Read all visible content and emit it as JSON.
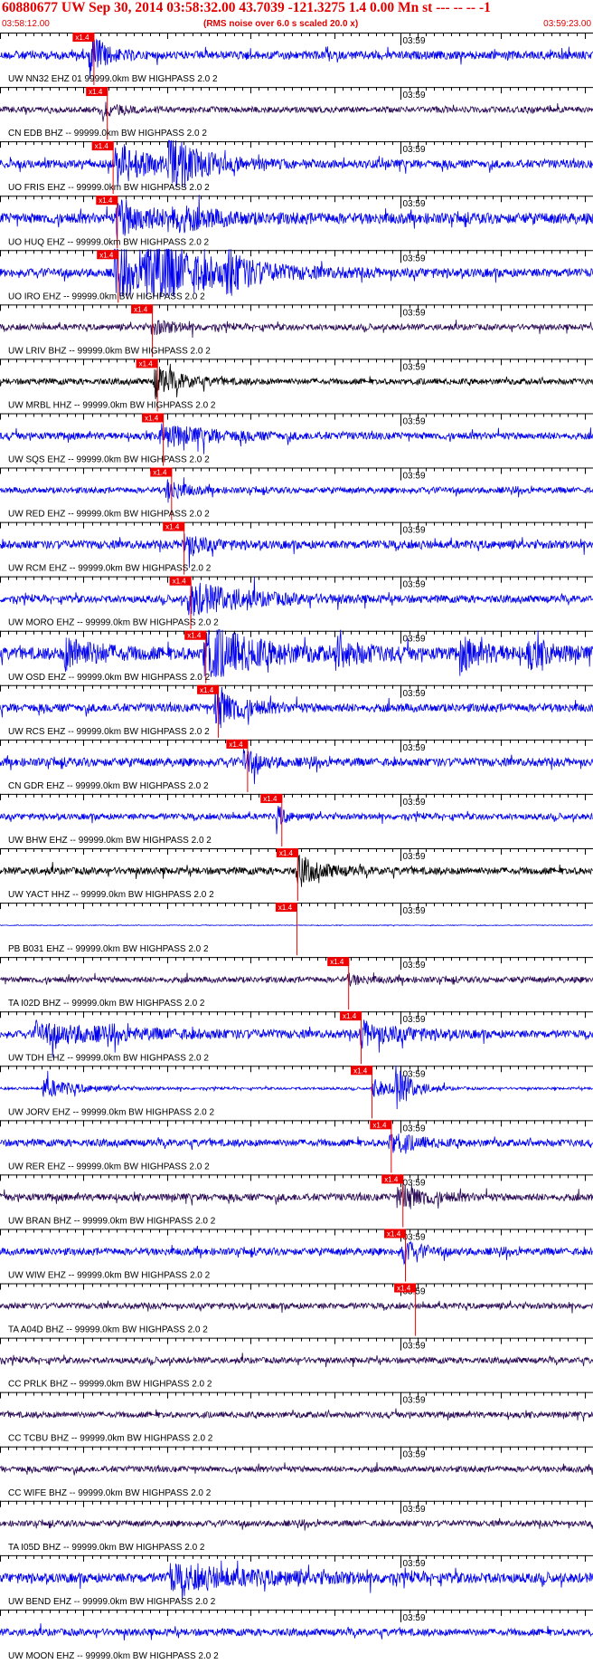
{
  "header": {
    "title": "60880677 UW Sep 30, 2014 03:58:32.00   43.7039 -121.3275  1.4 0.00 Mn st --- -- --   -1",
    "start_time": "03:58:12.00",
    "scale_note": "(RMS noise over 6.0 s scaled 20.0 x)",
    "end_time": "03:59:23.00"
  },
  "colors": {
    "blue": "#0000ee",
    "black": "#000000",
    "dark": "#2a0a55",
    "pick": "#ee0000",
    "header_red": "#e00000"
  },
  "chart_data": {
    "type": "line",
    "title": "60880677 UW Sep 30, 2014 03:58:32.00   43.7039 -121.3275  1.4 0.00 Mn st --- -- --   -1",
    "x_range_seconds": [
      0,
      71
    ],
    "minute_tick_label": "03:59",
    "minute_tick_seconds": 48,
    "pick_label": "x1.4",
    "traces": [
      {
        "name": "UW NN32 EHZ 01 99999.0km BW  HIGHPASS  2.0  2",
        "color": "blue",
        "amp": 0.35,
        "pick": 10.0,
        "event": [
          {
            "t": 10.6,
            "d": 1.5,
            "a": 2.4
          }
        ]
      },
      {
        "name": "CN EDB BHZ -- 99999.0km BW  HIGHPASS  2.0  2",
        "color": "dark",
        "amp": 0.25,
        "pick": 11.6,
        "event": [
          {
            "t": 12.0,
            "d": 2.0,
            "a": 0.6
          }
        ]
      },
      {
        "name": "UO FRIS EHZ -- 99999.0km BW  HIGHPASS  2.0  2",
        "color": "blue",
        "amp": 0.35,
        "pick": 12.3,
        "event": [
          {
            "t": 13.5,
            "d": 3.5,
            "a": 2.0
          },
          {
            "t": 20.0,
            "d": 4.0,
            "a": 2.2
          }
        ]
      },
      {
        "name": "UO HUQ EHZ -- 99999.0km BW  HIGHPASS  2.0  2",
        "color": "blue",
        "amp": 0.45,
        "pick": 12.8,
        "event": [
          {
            "t": 13.8,
            "d": 4.0,
            "a": 1.6
          },
          {
            "t": 20.0,
            "d": 5.0,
            "a": 0.9
          }
        ]
      },
      {
        "name": "UO IRO EHZ -- 99999.0km BW  HIGHPASS  2.0  2",
        "color": "blue",
        "amp": 0.35,
        "pick": 12.9,
        "event": [
          {
            "t": 13.5,
            "d": 3.0,
            "a": 2.8
          },
          {
            "t": 17.0,
            "d": 8.0,
            "a": 2.8
          },
          {
            "t": 27.0,
            "d": 2.0,
            "a": 1.5
          }
        ]
      },
      {
        "name": "UW LRIV BHZ -- 99999.0km BW  HIGHPASS  2.0  2",
        "color": "dark",
        "amp": 0.25,
        "pick": 17.0,
        "event": [
          {
            "t": 18.0,
            "d": 3.0,
            "a": 0.6
          }
        ]
      },
      {
        "name": "UW MRBL HHZ -- 99999.0km BW  HIGHPASS  2.0  2",
        "color": "black",
        "amp": 0.25,
        "pick": 17.6,
        "event": [
          {
            "t": 18.3,
            "d": 3.0,
            "a": 1.4
          }
        ]
      },
      {
        "name": "UW SQS EHZ -- 99999.0km BW  HIGHPASS  2.0  2",
        "color": "blue",
        "amp": 0.3,
        "pick": 18.3,
        "event": [
          {
            "t": 19.0,
            "d": 6.0,
            "a": 0.9
          }
        ]
      },
      {
        "name": "UW RED EHZ -- 99999.0km BW  HIGHPASS  2.0  2",
        "color": "blue",
        "amp": 0.25,
        "pick": 19.3,
        "event": [
          {
            "t": 19.8,
            "d": 2.0,
            "a": 1.0
          }
        ]
      },
      {
        "name": "UW RCM EHZ -- 99999.0km BW  HIGHPASS  2.0  2",
        "color": "blue",
        "amp": 0.35,
        "pick": 20.8,
        "event": [
          {
            "t": 21.8,
            "d": 2.0,
            "a": 1.3
          }
        ]
      },
      {
        "name": "UW MORO EHZ -- 99999.0km BW  HIGHPASS  2.0  2",
        "color": "blue",
        "amp": 0.3,
        "pick": 21.6,
        "event": [
          {
            "t": 22.3,
            "d": 7.0,
            "a": 1.4
          }
        ]
      },
      {
        "name": "UW OSD EHZ -- 99999.0km BW  HIGHPASS  2.0  2",
        "color": "blue",
        "amp": 0.5,
        "pick": 23.4,
        "event": [
          {
            "t": 7.5,
            "d": 4.0,
            "a": 1.3
          },
          {
            "t": 24.3,
            "d": 6.0,
            "a": 2.4
          },
          {
            "t": 40.0,
            "d": 3.0,
            "a": 1.0
          },
          {
            "t": 55.0,
            "d": 3.0,
            "a": 1.2
          },
          {
            "t": 63.0,
            "d": 3.0,
            "a": 1.1
          }
        ]
      },
      {
        "name": "UW RCS EHZ -- 99999.0km BW  HIGHPASS  2.0  2",
        "color": "blue",
        "amp": 0.35,
        "pick": 24.9,
        "event": [
          {
            "t": 25.6,
            "d": 3.0,
            "a": 2.0
          }
        ]
      },
      {
        "name": "CN GDR EHZ -- 99999.0km BW  HIGHPASS  2.0  2",
        "color": "blue",
        "amp": 0.35,
        "pick": 28.4,
        "event": [
          {
            "t": 29.0,
            "d": 2.0,
            "a": 1.1
          }
        ]
      },
      {
        "name": "UW BHW EHZ -- 99999.0km BW  HIGHPASS  2.0  2",
        "color": "blue",
        "amp": 0.25,
        "pick": 32.5,
        "event": [
          {
            "t": 33.0,
            "d": 1.0,
            "a": 1.1
          }
        ]
      },
      {
        "name": "UW YACT HHZ -- 99999.0km BW  HIGHPASS  2.0  2",
        "color": "black",
        "amp": 0.3,
        "pick": 34.4,
        "event": [
          {
            "t": 35.4,
            "d": 3.0,
            "a": 1.2
          }
        ]
      },
      {
        "name": "PB B031 EHZ -- 99999.0km BW  HIGHPASS  2.0  2",
        "color": "blue",
        "amp": 0.03,
        "pick": 34.3,
        "event": []
      },
      {
        "name": "TA I02D BHZ -- 99999.0km BW  HIGHPASS  2.0  2",
        "color": "dark",
        "amp": 0.25,
        "pick": 40.5,
        "event": [
          {
            "t": 41.5,
            "d": 2.0,
            "a": 0.4
          }
        ]
      },
      {
        "name": "UW TDH EHZ -- 99999.0km BW  HIGHPASS  2.0  2",
        "color": "blue",
        "amp": 0.3,
        "pick": 42.0,
        "event": [
          {
            "t": 4.0,
            "d": 12.0,
            "a": 0.8
          },
          {
            "t": 43.0,
            "d": 5.0,
            "a": 1.0
          }
        ]
      },
      {
        "name": "UW JORV EHZ -- 99999.0km BW  HIGHPASS  2.0  2",
        "color": "blue",
        "amp": 0.1,
        "pick": 43.3,
        "event": [
          {
            "t": 5.0,
            "d": 4.0,
            "a": 0.9
          },
          {
            "t": 44.5,
            "d": 2.0,
            "a": 1.0
          },
          {
            "t": 47.0,
            "d": 2.0,
            "a": 2.0
          }
        ]
      },
      {
        "name": "UW RER EHZ -- 99999.0km BW  HIGHPASS  2.0  2",
        "color": "blue",
        "amp": 0.3,
        "pick": 45.6,
        "event": [
          {
            "t": 46.5,
            "d": 3.0,
            "a": 0.9
          }
        ]
      },
      {
        "name": "UW BRAN BHZ -- 99999.0km BW  HIGHPASS  2.0  2",
        "color": "dark",
        "amp": 0.3,
        "pick": 47.0,
        "event": [
          {
            "t": 47.5,
            "d": 3.0,
            "a": 1.4
          }
        ]
      },
      {
        "name": "UW WIW EHZ -- 99999.0km BW  HIGHPASS  2.0  2",
        "color": "blue",
        "amp": 0.3,
        "pick": 47.3,
        "event": [
          {
            "t": 48.0,
            "d": 2.0,
            "a": 1.0
          }
        ]
      },
      {
        "name": "TA A04D BHZ -- 99999.0km BW  HIGHPASS  2.0  2",
        "color": "dark",
        "amp": 0.25,
        "pick": 48.5,
        "event": []
      },
      {
        "name": "CC PRLK BHZ -- 99999.0km BW  HIGHPASS  2.0  2",
        "color": "dark",
        "amp": 0.25,
        "pick": null,
        "event": []
      },
      {
        "name": "CC TCBU BHZ -- 99999.0km BW  HIGHPASS  2.0  2",
        "color": "dark",
        "amp": 0.25,
        "pick": null,
        "event": []
      },
      {
        "name": "CC WIFE BHZ -- 99999.0km BW  HIGHPASS  2.0  2",
        "color": "dark",
        "amp": 0.25,
        "pick": null,
        "event": []
      },
      {
        "name": "TA I05D BHZ -- 99999.0km BW  HIGHPASS  2.0  2",
        "color": "dark",
        "amp": 0.25,
        "pick": null,
        "event": []
      },
      {
        "name": "UW BEND EHZ -- 99999.0km BW  HIGHPASS  2.0  2",
        "color": "blue",
        "amp": 0.4,
        "pick": null,
        "event": [
          {
            "t": 20.0,
            "d": 12.0,
            "a": 0.9
          }
        ]
      },
      {
        "name": "UW MOON EHZ -- 99999.0km BW  HIGHPASS  2.0  2",
        "color": "blue",
        "amp": 0.3,
        "pick": null,
        "event": []
      }
    ]
  }
}
